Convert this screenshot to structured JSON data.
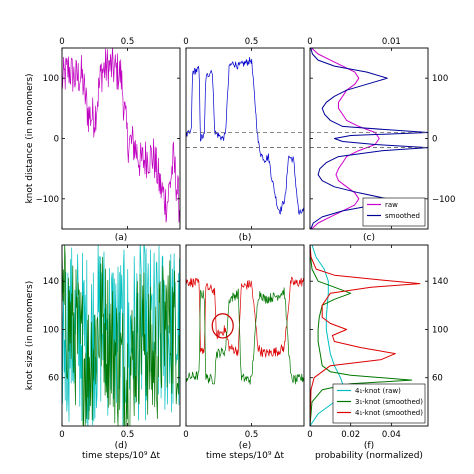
{
  "chart_data": [
    {
      "id": "a",
      "type": "line",
      "panel_label": "(a)",
      "ylabel": "knot distance (in monomers)",
      "xlim": [
        0,
        0.9
      ],
      "ylim": [
        -150,
        150
      ],
      "x_ticks": [
        0,
        0.5
      ],
      "x_tick_labels_top": [
        "0",
        "0.5"
      ],
      "y_ticks": [
        -100,
        0,
        100
      ],
      "y_tick_labels": [
        "−100",
        "0",
        "100"
      ],
      "series": [
        {
          "color": "#c000c0",
          "x": [
            0,
            0.05,
            0.1,
            0.15,
            0.2,
            0.25,
            0.3,
            0.35,
            0.4,
            0.45,
            0.5,
            0.55,
            0.6,
            0.65,
            0.7,
            0.75,
            0.8,
            0.85,
            0.9
          ],
          "values": [
            95,
            115,
            100,
            105,
            40,
            35,
            110,
            120,
            115,
            105,
            -5,
            -10,
            -40,
            -30,
            -30,
            -80,
            -110,
            -35,
            -120
          ],
          "noise": 35
        }
      ]
    },
    {
      "id": "b",
      "type": "line",
      "panel_label": "(b)",
      "xlim": [
        0,
        0.9
      ],
      "ylim": [
        -150,
        150
      ],
      "x_ticks": [
        0,
        0.5
      ],
      "x_tick_labels_top": [
        "0",
        "0.5"
      ],
      "series": [
        {
          "color": "#0000cc",
          "x": [
            0,
            0.04,
            0.05,
            0.1,
            0.11,
            0.14,
            0.15,
            0.2,
            0.22,
            0.28,
            0.3,
            0.33,
            0.36,
            0.4,
            0.45,
            0.5,
            0.55,
            0.57,
            0.6,
            0.63,
            0.65,
            0.7,
            0.72,
            0.76,
            0.78,
            0.82,
            0.86,
            0.9
          ],
          "values": [
            5,
            10,
            110,
            115,
            0,
            5,
            100,
            115,
            10,
            0,
            5,
            120,
            125,
            120,
            125,
            130,
            -5,
            -25,
            -35,
            -30,
            -60,
            -115,
            -120,
            -95,
            -30,
            -35,
            -125,
            -120
          ],
          "noise": 6
        }
      ],
      "hlines": [
        10,
        -15
      ]
    },
    {
      "id": "c",
      "type": "line",
      "panel_label": "(c)",
      "xlim": [
        0,
        0.0145
      ],
      "ylim": [
        -150,
        150
      ],
      "x_ticks": [
        0,
        0.01
      ],
      "x_tick_labels_top": [
        "0",
        "0.01"
      ],
      "y_ticks": [
        -100,
        0,
        100
      ],
      "y_tick_labels_right": [
        "−100",
        "0",
        "100"
      ],
      "series": [
        {
          "name": "raw",
          "color": "#cc00cc",
          "y": [
            -150,
            -140,
            -130,
            -120,
            -110,
            -100,
            -90,
            -80,
            -70,
            -60,
            -50,
            -40,
            -30,
            -20,
            -10,
            0,
            10,
            20,
            30,
            40,
            50,
            60,
            70,
            80,
            90,
            100,
            110,
            120,
            130,
            140,
            150
          ],
          "values": [
            0.0002,
            0.001,
            0.0025,
            0.004,
            0.0055,
            0.006,
            0.0055,
            0.0045,
            0.0035,
            0.0032,
            0.0035,
            0.004,
            0.0045,
            0.006,
            0.008,
            0.0085,
            0.008,
            0.006,
            0.0045,
            0.004,
            0.0035,
            0.0035,
            0.004,
            0.0045,
            0.0055,
            0.006,
            0.0055,
            0.004,
            0.0025,
            0.001,
            0.0002
          ]
        },
        {
          "name": "smoothed",
          "color": "#000099",
          "y": [
            -150,
            -140,
            -130,
            -120,
            -110,
            -100,
            -90,
            -80,
            -70,
            -60,
            -50,
            -40,
            -30,
            -20,
            -15,
            -10,
            -5,
            0,
            5,
            10,
            15,
            20,
            30,
            40,
            50,
            60,
            70,
            80,
            90,
            100,
            110,
            120,
            130,
            140,
            150
          ],
          "values": [
            0.0001,
            0.0004,
            0.0015,
            0.004,
            0.008,
            0.0095,
            0.006,
            0.003,
            0.0015,
            0.001,
            0.0012,
            0.002,
            0.0035,
            0.009,
            0.0145,
            0.008,
            0.004,
            0.003,
            0.005,
            0.0145,
            0.009,
            0.004,
            0.0025,
            0.0018,
            0.0015,
            0.002,
            0.003,
            0.0045,
            0.007,
            0.0095,
            0.007,
            0.003,
            0.001,
            0.0003,
            0.0001
          ]
        }
      ],
      "hlines": [
        10,
        -15
      ],
      "legend": [
        "raw",
        "smoothed"
      ]
    },
    {
      "id": "d",
      "type": "line",
      "panel_label": "(d)",
      "ylabel": "knot size (in monomers)",
      "xlabel": "time steps/10⁹ Δt",
      "xlim": [
        0,
        0.9
      ],
      "ylim": [
        20,
        170
      ],
      "x_ticks": [
        0,
        0.5
      ],
      "x_tick_labels": [
        "0",
        "0.5"
      ],
      "y_ticks": [
        60,
        100,
        140
      ],
      "y_tick_labels": [
        "60",
        "100",
        "140"
      ],
      "series": [
        {
          "color": "#00bfbf",
          "x": [
            0,
            0.1,
            0.2,
            0.3,
            0.4,
            0.5,
            0.6,
            0.7,
            0.8,
            0.9
          ],
          "values": [
            95,
            100,
            90,
            105,
            95,
            90,
            100,
            95,
            100,
            95
          ],
          "noise": 75
        },
        {
          "color": "#007700",
          "x": [
            0,
            0.1,
            0.2,
            0.3,
            0.4,
            0.5,
            0.6,
            0.7,
            0.8,
            0.9
          ],
          "values": [
            120,
            95,
            70,
            110,
            80,
            60,
            100,
            70,
            110,
            90
          ],
          "noise": 60
        }
      ]
    },
    {
      "id": "e",
      "type": "line",
      "panel_label": "(e)",
      "xlabel": "time steps/10⁹ Δt",
      "xlim": [
        0,
        0.9
      ],
      "ylim": [
        20,
        170
      ],
      "x_ticks": [
        0,
        0.5
      ],
      "x_tick_labels": [
        "0",
        "0.5"
      ],
      "series": [
        {
          "color": "#dd0000",
          "x": [
            0,
            0.1,
            0.11,
            0.14,
            0.15,
            0.22,
            0.23,
            0.3,
            0.33,
            0.4,
            0.42,
            0.5,
            0.55,
            0.57,
            0.6,
            0.7,
            0.75,
            0.8,
            0.83,
            0.9
          ],
          "values": [
            140,
            138,
            85,
            82,
            135,
            132,
            95,
            100,
            85,
            82,
            135,
            138,
            85,
            82,
            80,
            82,
            85,
            140,
            138,
            140
          ],
          "noise": 4
        },
        {
          "color": "#007700",
          "x": [
            0,
            0.1,
            0.11,
            0.14,
            0.15,
            0.22,
            0.23,
            0.3,
            0.33,
            0.4,
            0.42,
            0.5,
            0.55,
            0.57,
            0.6,
            0.7,
            0.75,
            0.8,
            0.83,
            0.9
          ],
          "values": [
            60,
            62,
            130,
            128,
            60,
            58,
            80,
            82,
            125,
            130,
            60,
            58,
            128,
            130,
            125,
            128,
            132,
            60,
            58,
            60
          ],
          "noise": 4
        }
      ],
      "annotation": {
        "type": "ellipse",
        "cx": 0.28,
        "cy": 103,
        "rx": 0.08,
        "ry": 10,
        "color": "#cc0000"
      }
    },
    {
      "id": "f",
      "type": "line",
      "panel_label": "(f)",
      "xlabel": "probability (normalized)",
      "xlim": [
        0,
        0.058
      ],
      "ylim": [
        20,
        170
      ],
      "x_ticks": [
        0,
        0.02,
        0.04
      ],
      "x_tick_labels": [
        "0",
        "0.02",
        "0.04"
      ],
      "y_ticks": [
        60,
        100,
        140
      ],
      "y_tick_labels_right": [
        "60",
        "100",
        "140"
      ],
      "series": [
        {
          "name": "4₁-knot (raw)",
          "color": "#00bfbf",
          "y": [
            20,
            30,
            40,
            50,
            60,
            70,
            80,
            90,
            100,
            110,
            120,
            130,
            140,
            150,
            160,
            170
          ],
          "values": [
            0.0,
            0.004,
            0.012,
            0.017,
            0.015,
            0.012,
            0.01,
            0.009,
            0.008,
            0.008,
            0.0085,
            0.009,
            0.009,
            0.007,
            0.003,
            0.001
          ]
        },
        {
          "name": "3₁-knot (smoothed)",
          "color": "#007700",
          "y": [
            20,
            40,
            50,
            55,
            58,
            62,
            65,
            70,
            80,
            90,
            100,
            110,
            120,
            125,
            130,
            135,
            140,
            150,
            160,
            170
          ],
          "values": [
            0.0,
            0.001,
            0.006,
            0.02,
            0.05,
            0.02,
            0.01,
            0.006,
            0.005,
            0.004,
            0.004,
            0.0045,
            0.006,
            0.012,
            0.02,
            0.012,
            0.004,
            0.001,
            0.0003,
            0.0
          ]
        },
        {
          "name": "4₁-knot (smoothed)",
          "color": "#dd0000",
          "y": [
            20,
            50,
            60,
            70,
            75,
            80,
            85,
            90,
            95,
            100,
            105,
            110,
            120,
            130,
            135,
            138,
            141,
            145,
            150,
            160,
            170
          ],
          "values": [
            0.0,
            0.0005,
            0.002,
            0.01,
            0.035,
            0.042,
            0.025,
            0.012,
            0.011,
            0.018,
            0.01,
            0.006,
            0.006,
            0.01,
            0.03,
            0.054,
            0.035,
            0.012,
            0.003,
            0.0005,
            0.0
          ]
        }
      ],
      "legend": [
        "4₁-knot (raw)",
        "3₁-knot (smoothed)",
        "4₁-knot (smoothed)"
      ]
    }
  ]
}
